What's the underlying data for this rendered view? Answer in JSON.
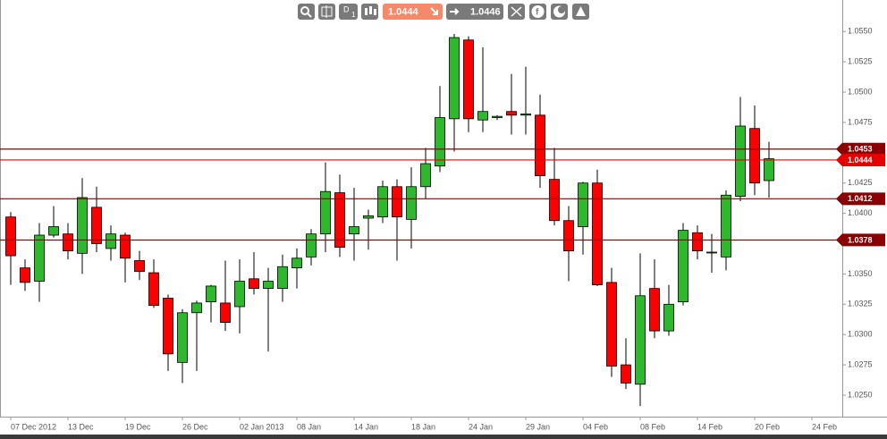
{
  "toolbar": {
    "timeframe_letter": "D",
    "timeframe_number": "1",
    "bid": "1.0444",
    "ask": "1.0446"
  },
  "chart_data": {
    "type": "candlestick",
    "categories": [
      "07 Dec 2012",
      null,
      null,
      null,
      "13 Dec",
      null,
      null,
      null,
      "19 Dec",
      null,
      null,
      null,
      "26 Dec",
      null,
      null,
      null,
      "02 Jan 2013",
      null,
      null,
      null,
      "08 Jan",
      null,
      null,
      null,
      "14 Jan",
      null,
      null,
      null,
      "18 Jan",
      null,
      null,
      null,
      "24 Jan",
      null,
      null,
      null,
      "29 Jan",
      null,
      null,
      null,
      "04 Feb",
      null,
      null,
      null,
      "08 Feb",
      null,
      null,
      null,
      "14 Feb",
      null,
      null,
      null,
      "20 Feb",
      null,
      null,
      null,
      "24 Feb"
    ],
    "open": [
      1.0397,
      1.0355,
      1.0344,
      1.0382,
      1.0383,
      1.0367,
      1.0405,
      1.0371,
      1.0382,
      1.0361,
      1.0351,
      1.033,
      1.0277,
      1.0318,
      1.0327,
      1.0326,
      1.0323,
      1.0346,
      1.0338,
      1.0338,
      1.0355,
      1.0364,
      1.0383,
      1.0417,
      1.0383,
      1.0396,
      1.0397,
      1.0422,
      1.0395,
      1.0422,
      1.0439,
      1.0478,
      1.0543,
      1.0477,
      1.0479,
      1.0484,
      1.0481,
      1.0481,
      1.0428,
      1.0394,
      1.0389,
      1.0425,
      1.0343,
      1.0275,
      1.0259,
      1.0338,
      1.0303,
      1.0327,
      1.0384,
      1.0368,
      1.0364,
      1.0414,
      1.047,
      1.0427,
      null,
      null,
      null
    ],
    "high": [
      1.0401,
      1.0362,
      1.0392,
      1.0406,
      1.0392,
      1.0429,
      1.0422,
      1.039,
      1.0384,
      1.0369,
      1.0362,
      1.0333,
      1.0321,
      1.0328,
      1.0341,
      1.0361,
      1.0362,
      1.0368,
      1.0355,
      1.0366,
      1.0371,
      1.0387,
      1.0442,
      1.0432,
      1.0421,
      1.0403,
      1.0427,
      1.0428,
      1.0438,
      1.0454,
      1.0505,
      1.0548,
      1.0546,
      1.0537,
      1.0481,
      1.0515,
      1.0521,
      1.0498,
      1.0454,
      1.0406,
      1.0426,
      1.0436,
      1.0355,
      1.0297,
      1.0367,
      1.0362,
      1.0341,
      1.0392,
      1.039,
      1.0383,
      1.0419,
      1.0496,
      1.0489,
      1.0459,
      null,
      null,
      null
    ],
    "low": [
      1.0341,
      1.0336,
      1.0327,
      1.038,
      1.0362,
      1.035,
      1.0368,
      1.0361,
      1.0343,
      1.0345,
      1.0322,
      1.027,
      1.026,
      1.027,
      1.031,
      1.0303,
      1.0301,
      1.0333,
      1.0286,
      1.0327,
      1.0338,
      1.0357,
      1.0368,
      1.0364,
      1.0361,
      1.037,
      1.0392,
      1.0361,
      1.0371,
      1.0412,
      1.0434,
      1.0451,
      1.0467,
      1.0467,
      1.0477,
      1.0465,
      1.0465,
      1.0421,
      1.039,
      1.0344,
      1.0366,
      1.034,
      1.0265,
      1.0255,
      1.0241,
      1.0297,
      1.0299,
      1.0324,
      1.0362,
      1.0351,
      1.0353,
      1.041,
      1.0415,
      1.0413,
      null,
      null,
      null
    ],
    "close": [
      1.0365,
      1.0343,
      1.0382,
      1.0389,
      1.0369,
      1.0413,
      1.0375,
      1.0383,
      1.0363,
      1.0352,
      1.0324,
      1.0284,
      1.0318,
      1.0326,
      1.034,
      1.031,
      1.0344,
      1.0338,
      1.0344,
      1.0356,
      1.0363,
      1.0383,
      1.0418,
      1.0372,
      1.0389,
      1.0398,
      1.0422,
      1.0397,
      1.0422,
      1.0441,
      1.0479,
      1.0545,
      1.0478,
      1.0484,
      1.048,
      1.0481,
      1.0482,
      1.0431,
      1.0394,
      1.0369,
      1.0425,
      1.0341,
      1.0274,
      1.026,
      1.0332,
      1.0303,
      1.0325,
      1.0386,
      1.0369,
      1.0368,
      1.0415,
      1.0472,
      1.0425,
      1.0445,
      null,
      null,
      null
    ],
    "up_color": "#2db82d",
    "down_color": "#ff0000",
    "ylim": [
      1.0233,
      1.0576
    ],
    "yticks": [
      {
        "value": 1.025,
        "label": "1.0250"
      },
      1.0275,
      {
        "value": 1.03,
        "label": "1.0300"
      },
      1.0325,
      {
        "value": 1.035,
        "label": "1.0350"
      },
      1.0375,
      {
        "value": 1.04,
        "label": "1.0400"
      },
      1.0425,
      {
        "value": 1.045,
        "label": "1.0450"
      },
      1.0475,
      {
        "value": 1.05,
        "label": "1.0500"
      },
      1.0525,
      {
        "value": 1.055,
        "label": "1.0550"
      }
    ],
    "hlines": [
      {
        "value": 1.0453,
        "color": "#8b0000"
      },
      {
        "value": 1.0444,
        "color": "#e60000"
      },
      {
        "value": 1.0412,
        "color": "#8b0000"
      },
      {
        "value": 1.0378,
        "color": "#8b0000"
      }
    ]
  }
}
